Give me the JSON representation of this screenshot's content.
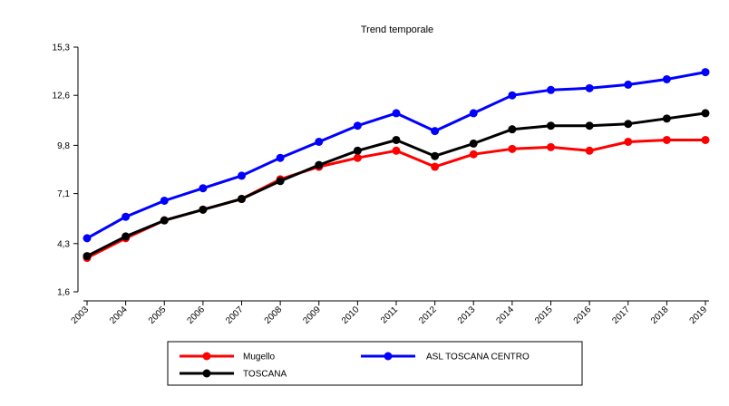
{
  "chart_data": {
    "type": "line",
    "title": "Trend temporale",
    "xlabel": "",
    "ylabel": "",
    "x": [
      "2003",
      "2004",
      "2005",
      "2006",
      "2007",
      "2008",
      "2009",
      "2010",
      "2011",
      "2012",
      "2013",
      "2014",
      "2015",
      "2016",
      "2017",
      "2018",
      "2019"
    ],
    "y_ticks": [
      "1,6",
      "4,3",
      "7,1",
      "9,8",
      "12,6",
      "15,3"
    ],
    "y_tick_values": [
      1.6,
      4.3,
      7.1,
      9.8,
      12.6,
      15.3
    ],
    "ylim": [
      1.6,
      15.3
    ],
    "grid": false,
    "legend_position": "bottom",
    "series": [
      {
        "name": "Mugello",
        "color": "#ff0000",
        "values": [
          3.5,
          4.6,
          5.6,
          6.2,
          6.8,
          7.9,
          8.6,
          9.1,
          9.5,
          8.6,
          9.3,
          9.6,
          9.7,
          9.5,
          10.0,
          10.1,
          10.1
        ]
      },
      {
        "name": "ASL TOSCANA CENTRO",
        "color": "#0000ff",
        "values": [
          4.6,
          5.8,
          6.7,
          7.4,
          8.1,
          9.1,
          10.0,
          10.9,
          11.6,
          10.6,
          11.6,
          12.6,
          12.9,
          13.0,
          13.2,
          13.5,
          13.9
        ]
      },
      {
        "name": "TOSCANA",
        "color": "#000000",
        "values": [
          3.6,
          4.7,
          5.6,
          6.2,
          6.8,
          7.8,
          8.7,
          9.5,
          10.1,
          9.2,
          9.9,
          10.7,
          10.9,
          10.9,
          11.0,
          11.3,
          11.6
        ]
      }
    ]
  }
}
